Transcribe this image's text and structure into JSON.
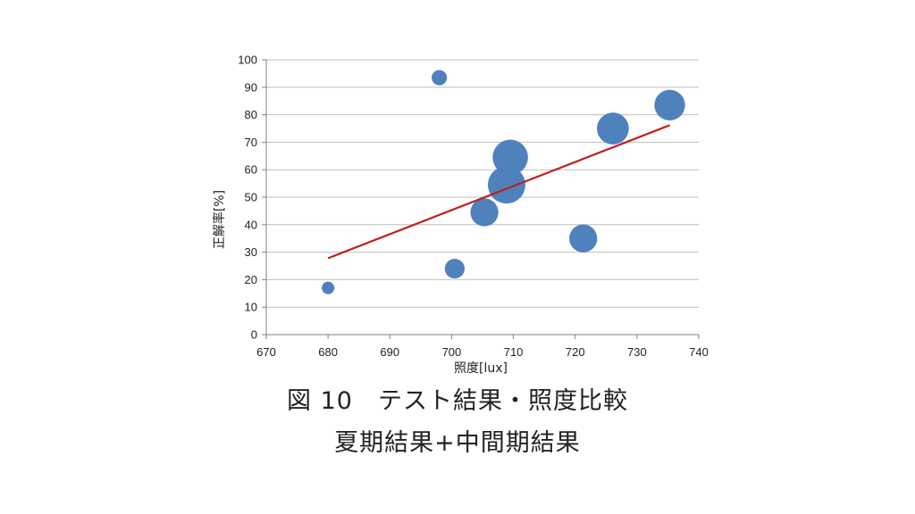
{
  "caption": {
    "line1": "図 10　テスト結果・照度比較",
    "line2": "夏期結果+中間期結果"
  },
  "colors": {
    "bubble": "#4f81bd",
    "trendline": "#c0201e",
    "grid": "#bfbfbf"
  },
  "chart_data": {
    "type": "scatter",
    "subtype": "bubble",
    "xlabel": "照度[lux]",
    "ylabel": "正解率[%]",
    "xlim": [
      670,
      740
    ],
    "ylim": [
      0,
      100
    ],
    "xticks": [
      670,
      680,
      690,
      700,
      710,
      720,
      730,
      740
    ],
    "yticks": [
      0,
      10,
      20,
      30,
      40,
      50,
      60,
      70,
      80,
      90,
      100
    ],
    "grid": "horizontal",
    "points": [
      {
        "x": 680,
        "y": 17,
        "size": 1
      },
      {
        "x": 698,
        "y": 93.5,
        "size": 1.5
      },
      {
        "x": 700.5,
        "y": 24,
        "size": 2.5
      },
      {
        "x": 705.3,
        "y": 44.5,
        "size": 5
      },
      {
        "x": 708.9,
        "y": 54.5,
        "size": 9
      },
      {
        "x": 709.5,
        "y": 64.5,
        "size": 8
      },
      {
        "x": 721.3,
        "y": 35,
        "size": 5
      },
      {
        "x": 726.1,
        "y": 75,
        "size": 6.5
      },
      {
        "x": 735.3,
        "y": 83.5,
        "size": 6
      }
    ],
    "trendline": {
      "x": [
        680,
        735.3
      ],
      "y": [
        27.8,
        76.2
      ]
    }
  }
}
